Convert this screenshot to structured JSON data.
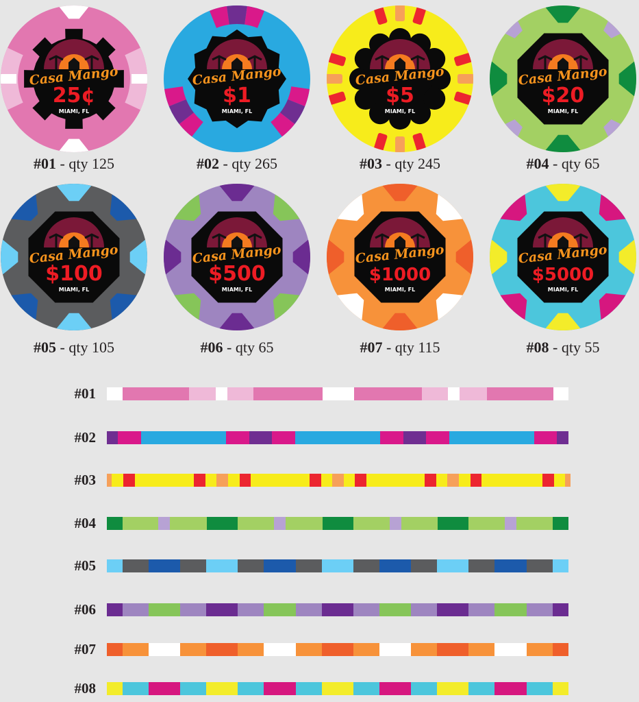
{
  "logo": {
    "name": "Casa Mango",
    "city": "MIAMI, FL"
  },
  "logo_colors": {
    "sky": "#7b1838",
    "sun": "#f47b20",
    "sun_inner": "#fbb040",
    "text": "#f7941d",
    "value": "#ed1c24",
    "city": "#ffffff",
    "center": "#0a0a0a"
  },
  "chips": [
    {
      "id": "#01",
      "qty_text": " - qty 125",
      "value": "25¢",
      "base": "#e277b0",
      "spot1": "#ffffff",
      "spot2": "#efb9d8",
      "center": "gear"
    },
    {
      "id": "#02",
      "qty_text": " - qty 265",
      "value": "$1",
      "base": "#29a9e0",
      "spot1": "#d9198a",
      "spot2": "#6f2e91",
      "center": "star"
    },
    {
      "id": "#03",
      "qty_text": " - qty 245",
      "value": "$5",
      "base": "#f7ec1b",
      "spot1": "#ec2530",
      "spot2": "#f6a05a",
      "center": "scallop"
    },
    {
      "id": "#04",
      "qty_text": "  - qty 65",
      "value": "$20",
      "base": "#a3d063",
      "spot1": "#0f8c3f",
      "spot2": "#b7a2d4",
      "center": "octagon"
    },
    {
      "id": "#05",
      "qty_text": " - qty 105",
      "value": "$100",
      "base": "#5b5c5e",
      "spot1": "#6ccff6",
      "spot2": "#1c5aab",
      "center": "octagon"
    },
    {
      "id": "#06",
      "qty_text": " - qty 65",
      "value": "$500",
      "base": "#9e85c0",
      "spot1": "#6b2c91",
      "spot2": "#86c559",
      "center": "octagon"
    },
    {
      "id": "#07",
      "qty_text": " - qty 115",
      "value": "$1000",
      "base": "#f7923a",
      "spot1": "#ef5f2b",
      "spot2": "#ffffff",
      "center": "octagon"
    },
    {
      "id": "#08",
      "qty_text": " - qty 55",
      "value": "$5000",
      "base": "#4cc6dc",
      "spot1": "#f3ec2a",
      "spot2": "#d6177f",
      "center": "octagon"
    }
  ],
  "stripes": [
    {
      "label": "#01",
      "colors": [
        "#ffffff",
        "#e277b0",
        "#efb9d8",
        "#ffffff",
        "#efb9d8",
        "#e277b0",
        "#ffffff",
        "#e277b0",
        "#efb9d8",
        "#ffffff",
        "#efb9d8",
        "#e277b0",
        "#ffffff"
      ]
    },
    {
      "label": "#02",
      "colors": [
        "#6f2e91",
        "#d9198a",
        "#29a9e0",
        "#d9198a",
        "#6f2e91",
        "#d9198a",
        "#29a9e0",
        "#d9198a",
        "#6f2e91",
        "#d9198a",
        "#29a9e0",
        "#d9198a",
        "#6f2e91"
      ]
    },
    {
      "label": "#03",
      "colors": [
        "#f6a05a",
        "#f7ec1b",
        "#ec2530",
        "#f7ec1b",
        "#ec2530",
        "#f7ec1b",
        "#f6a05a",
        "#f7ec1b",
        "#ec2530",
        "#f7ec1b",
        "#ec2530",
        "#f7ec1b",
        "#f6a05a",
        "#f7ec1b",
        "#ec2530",
        "#f7ec1b",
        "#ec2530",
        "#f7ec1b",
        "#f6a05a",
        "#f7ec1b",
        "#ec2530",
        "#f7ec1b",
        "#ec2530",
        "#f7ec1b",
        "#f6a05a"
      ]
    },
    {
      "label": "#04",
      "colors": [
        "#0f8c3f",
        "#a3d063",
        "#b7a2d4",
        "#a3d063",
        "#0f8c3f",
        "#a3d063",
        "#b7a2d4",
        "#a3d063",
        "#0f8c3f",
        "#a3d063",
        "#b7a2d4",
        "#a3d063",
        "#0f8c3f",
        "#a3d063",
        "#b7a2d4",
        "#a3d063",
        "#0f8c3f"
      ]
    },
    {
      "label": "#05",
      "colors": [
        "#6ccff6",
        "#5b5c5e",
        "#1c5aab",
        "#5b5c5e",
        "#6ccff6",
        "#5b5c5e",
        "#1c5aab",
        "#5b5c5e",
        "#6ccff6",
        "#5b5c5e",
        "#1c5aab",
        "#5b5c5e",
        "#6ccff6",
        "#5b5c5e",
        "#1c5aab",
        "#5b5c5e",
        "#6ccff6"
      ]
    },
    {
      "label": "#06",
      "colors": [
        "#6b2c91",
        "#9e85c0",
        "#86c559",
        "#9e85c0",
        "#6b2c91",
        "#9e85c0",
        "#86c559",
        "#9e85c0",
        "#6b2c91",
        "#9e85c0",
        "#86c559",
        "#9e85c0",
        "#6b2c91",
        "#9e85c0",
        "#86c559",
        "#9e85c0",
        "#6b2c91"
      ]
    },
    {
      "label": "#07",
      "colors": [
        "#ef5f2b",
        "#f7923a",
        "#ffffff",
        "#f7923a",
        "#ef5f2b",
        "#f7923a",
        "#ffffff",
        "#f7923a",
        "#ef5f2b",
        "#f7923a",
        "#ffffff",
        "#f7923a",
        "#ef5f2b",
        "#f7923a",
        "#ffffff",
        "#f7923a",
        "#ef5f2b"
      ]
    },
    {
      "label": "#08",
      "colors": [
        "#f3ec2a",
        "#4cc6dc",
        "#d6177f",
        "#4cc6dc",
        "#f3ec2a",
        "#4cc6dc",
        "#d6177f",
        "#4cc6dc",
        "#f3ec2a",
        "#4cc6dc",
        "#d6177f",
        "#4cc6dc",
        "#f3ec2a",
        "#4cc6dc",
        "#d6177f",
        "#4cc6dc",
        "#f3ec2a"
      ]
    }
  ]
}
